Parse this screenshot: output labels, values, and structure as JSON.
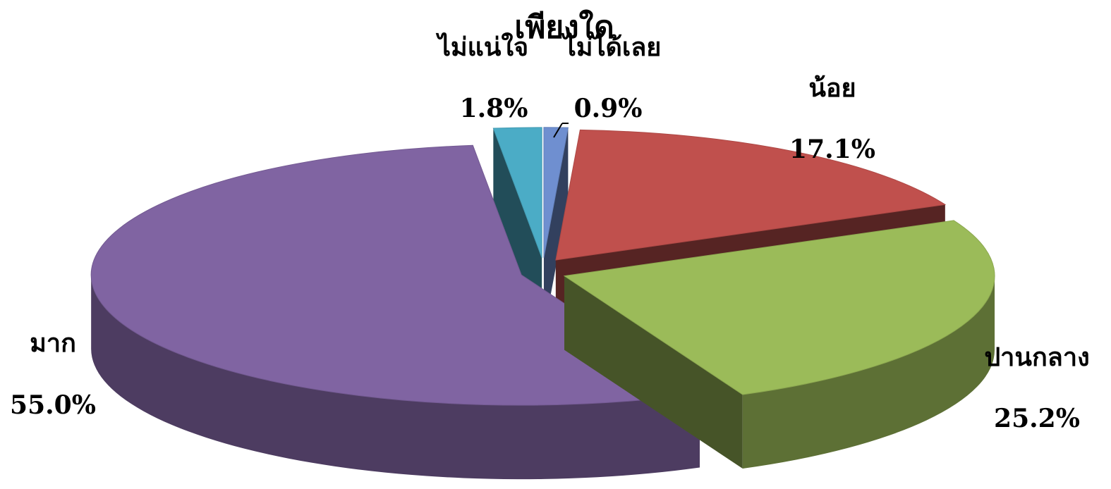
{
  "chart_data": {
    "type": "pie",
    "three_d": true,
    "annotation": "เพียงใด",
    "categories": [
      "ไม่ได้เลย",
      "น้อย",
      "ปานกลาง",
      "มาก",
      "ไม่แน่ใจ"
    ],
    "values": [
      0.9,
      17.1,
      25.2,
      55,
      1.8
    ],
    "value_labels": [
      "0.9%",
      "17.1%",
      "25.2%",
      "55.0%",
      "1.8%"
    ],
    "colors": [
      "#6f8fd0",
      "#c0504d",
      "#9bbb59",
      "#8064a2",
      "#4bacc6"
    ]
  }
}
